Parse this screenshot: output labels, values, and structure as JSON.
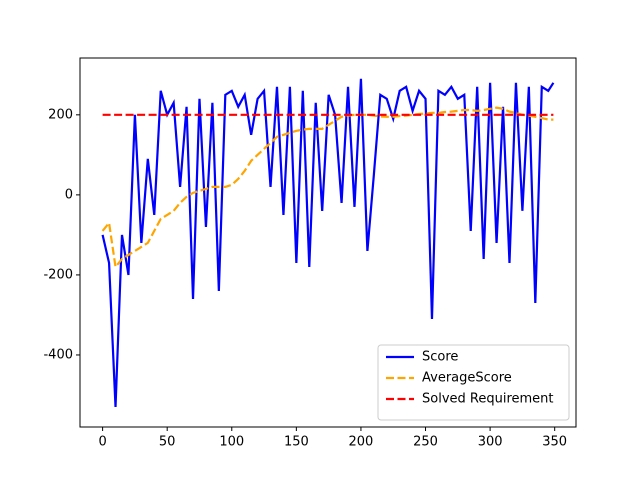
{
  "chart_data": {
    "type": "line",
    "x": [
      0,
      5,
      10,
      15,
      20,
      25,
      30,
      35,
      40,
      45,
      50,
      55,
      60,
      65,
      70,
      75,
      80,
      85,
      90,
      95,
      100,
      105,
      110,
      115,
      120,
      125,
      130,
      135,
      140,
      145,
      150,
      155,
      160,
      165,
      170,
      175,
      180,
      185,
      190,
      195,
      200,
      205,
      210,
      215,
      220,
      225,
      230,
      235,
      240,
      245,
      250,
      255,
      260,
      265,
      270,
      275,
      280,
      285,
      290,
      295,
      300,
      305,
      310,
      315,
      320,
      325,
      330,
      335,
      340,
      345,
      349
    ],
    "series": [
      {
        "name": "Score",
        "color": "#0000ff",
        "linestyle": "solid",
        "values": [
          -100,
          -170,
          -530,
          -100,
          -200,
          200,
          -120,
          90,
          -50,
          260,
          200,
          230,
          20,
          220,
          -260,
          240,
          -80,
          230,
          -240,
          250,
          260,
          220,
          250,
          150,
          240,
          260,
          20,
          270,
          -50,
          270,
          -170,
          260,
          -180,
          230,
          -40,
          250,
          200,
          -20,
          270,
          -30,
          290,
          -140,
          50,
          250,
          240,
          190,
          260,
          270,
          210,
          260,
          240,
          -310,
          260,
          250,
          270,
          240,
          250,
          -90,
          270,
          -160,
          280,
          -120,
          220,
          -170,
          280,
          -40,
          270,
          -270,
          270,
          260,
          280
        ]
      },
      {
        "name": "AverageScore",
        "color": "#ffa500",
        "linestyle": "dashed",
        "values": [
          -90,
          -70,
          -180,
          -160,
          -150,
          -140,
          -130,
          -120,
          -90,
          -60,
          -50,
          -40,
          -20,
          -5,
          5,
          10,
          15,
          20,
          20,
          20,
          25,
          40,
          60,
          85,
          100,
          115,
          130,
          145,
          150,
          155,
          160,
          163,
          165,
          165,
          165,
          175,
          185,
          195,
          198,
          200,
          200,
          200,
          198,
          196,
          195,
          195,
          197,
          198,
          200,
          202,
          203,
          205,
          205,
          207,
          208,
          210,
          212,
          212,
          210,
          212,
          215,
          218,
          215,
          208,
          205,
          200,
          198,
          195,
          192,
          188,
          188
        ]
      },
      {
        "name": "Solved Requirement",
        "color": "#ff0000",
        "linestyle": "dashed",
        "values": [
          200,
          200,
          200,
          200,
          200,
          200,
          200,
          200,
          200,
          200,
          200,
          200,
          200,
          200,
          200,
          200,
          200,
          200,
          200,
          200,
          200,
          200,
          200,
          200,
          200,
          200,
          200,
          200,
          200,
          200,
          200,
          200,
          200,
          200,
          200,
          200,
          200,
          200,
          200,
          200,
          200,
          200,
          200,
          200,
          200,
          200,
          200,
          200,
          200,
          200,
          200,
          200,
          200,
          200,
          200,
          200,
          200,
          200,
          200,
          200,
          200,
          200,
          200,
          200,
          200,
          200,
          200,
          200,
          200,
          200,
          200
        ]
      }
    ],
    "xlim": [
      -17.5,
      366.5
    ],
    "xticks": [
      0,
      50,
      100,
      150,
      200,
      250,
      300,
      350
    ],
    "ylim": [
      -580,
      342
    ],
    "yticks": [
      -400,
      -200,
      0,
      200
    ],
    "grid": false,
    "legend": "lower right"
  }
}
